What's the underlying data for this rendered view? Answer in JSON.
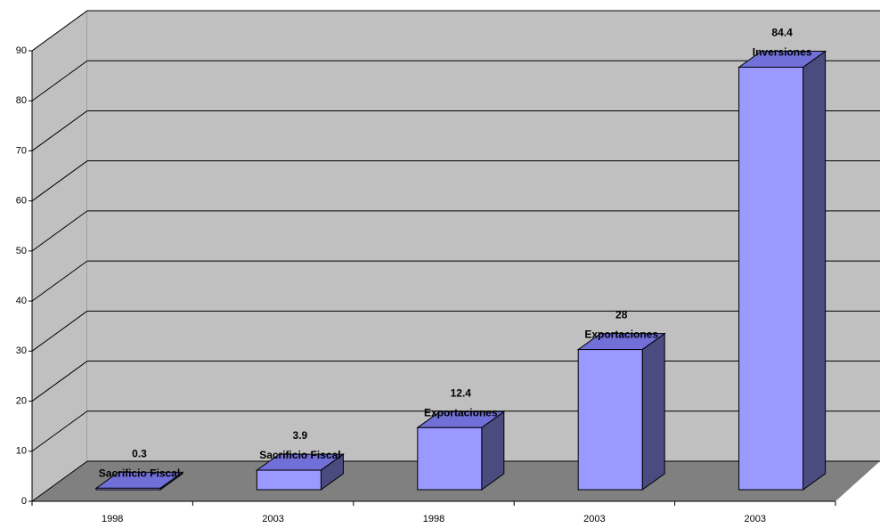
{
  "chart_data": {
    "type": "bar3d",
    "categories": [
      "1998",
      "2003",
      "1998",
      "2003",
      "2003"
    ],
    "values": [
      0.3,
      3.9,
      12.4,
      28,
      84.4
    ],
    "labels": [
      "Sacrificio Fiscal",
      "Sacrificio Fiscal",
      "Exportaciones",
      "Exportaciones",
      "Inversiones"
    ],
    "color": "#9999ff",
    "ylim": [
      0,
      90
    ],
    "yticks": [
      0,
      10,
      20,
      30,
      40,
      50,
      60,
      70,
      80,
      90
    ],
    "grid": true
  }
}
